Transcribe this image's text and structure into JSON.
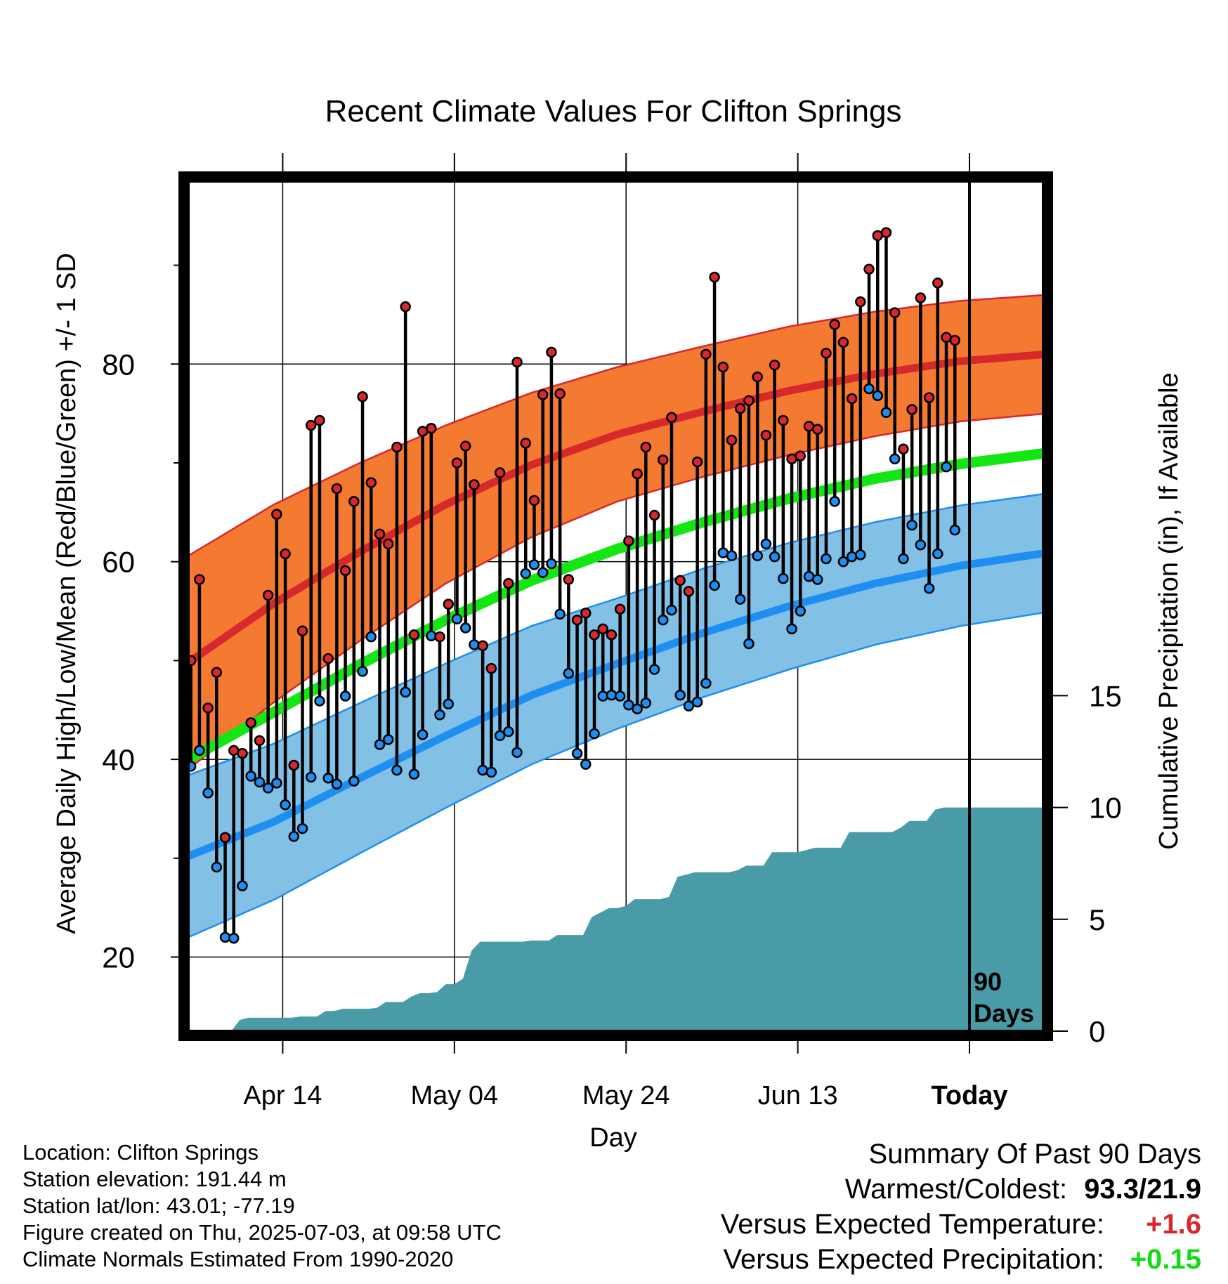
{
  "chart_data": {
    "type": "line",
    "title": "Recent Climate Values For Clifton Springs",
    "xlabel": "Day",
    "ylabel": "Average Daily High/Low/Mean (Red/Blue/Green) +/- 1 SD",
    "y2label": "Cumulative Precipitation (in), If Available",
    "ylim": [
      12.5,
      98.5
    ],
    "y2lim": [
      0,
      38
    ],
    "yticks": [
      20,
      40,
      60,
      80
    ],
    "y2ticks": [
      0,
      5,
      10,
      15
    ],
    "xticks": [
      {
        "day": 11,
        "label": "Apr 14"
      },
      {
        "day": 31,
        "label": "May 04"
      },
      {
        "day": 51,
        "label": "May 24"
      },
      {
        "day": 71,
        "label": "Jun 13"
      },
      {
        "day": 91,
        "label": "Today"
      }
    ],
    "today_marker": {
      "day": 91,
      "label_top": "90",
      "label_bottom": "Days"
    },
    "normals": {
      "days": [
        0,
        10,
        20,
        30,
        40,
        50,
        60,
        70,
        80,
        90,
        100
      ],
      "high_mean": [
        49.8,
        55.8,
        61.0,
        65.8,
        69.8,
        72.9,
        75.2,
        77.3,
        79.0,
        80.3,
        81.0
      ],
      "high_sd": [
        10.8,
        10.0,
        9.0,
        8.0,
        7.3,
        6.8,
        6.6,
        6.5,
        6.3,
        6.1,
        6.0
      ],
      "low_mean": [
        30.2,
        33.7,
        38.1,
        42.4,
        46.5,
        49.7,
        52.8,
        55.5,
        57.8,
        59.6,
        60.9
      ],
      "low_sd": [
        8.2,
        7.9,
        7.6,
        7.3,
        7.0,
        6.6,
        6.5,
        6.4,
        6.2,
        6.1,
        6.0
      ],
      "mean": [
        40.0,
        44.8,
        49.6,
        54.1,
        58.1,
        61.3,
        64.0,
        66.4,
        68.4,
        69.9,
        71.0
      ]
    },
    "series": [
      {
        "name": "High",
        "values": [
          50.0,
          58.2,
          45.2,
          48.8,
          32.1,
          40.9,
          40.6,
          43.7,
          41.9,
          56.6,
          64.8,
          60.8,
          39.4,
          53.0,
          73.8,
          74.3,
          50.2,
          67.4,
          59.1,
          66.1,
          76.7,
          68.0,
          62.8,
          61.8,
          71.6,
          85.8,
          52.6,
          73.2,
          73.5,
          52.4,
          55.7,
          70.0,
          71.7,
          67.8,
          51.5,
          49.2,
          69.0,
          57.8,
          80.2,
          72.0,
          66.2,
          76.9,
          81.2,
          77.0,
          58.2,
          54.1,
          54.8,
          52.6,
          53.2,
          52.6,
          55.2,
          62.1,
          68.9,
          71.6,
          64.7,
          70.3,
          74.6,
          58.1,
          57.0,
          70.1,
          81.0,
          88.8,
          79.7,
          72.3,
          75.5,
          76.3,
          78.7,
          72.8,
          79.9,
          74.3,
          70.4,
          70.7,
          73.7,
          73.4,
          81.1,
          84.0,
          82.2,
          76.5,
          86.3,
          89.6,
          93.0,
          93.3,
          85.2,
          71.4,
          75.4,
          86.7,
          76.6,
          88.2,
          82.7,
          82.4
        ]
      },
      {
        "name": "Low",
        "values": [
          39.3,
          40.9,
          36.6,
          29.1,
          22.0,
          21.9,
          27.2,
          38.3,
          37.7,
          37.1,
          37.6,
          35.4,
          32.2,
          33.0,
          38.2,
          45.9,
          38.1,
          37.5,
          46.4,
          37.8,
          48.9,
          52.4,
          41.5,
          42.0,
          38.9,
          46.8,
          38.5,
          42.5,
          52.5,
          44.5,
          45.6,
          54.2,
          53.3,
          51.6,
          38.9,
          38.7,
          42.4,
          42.8,
          40.7,
          58.8,
          59.7,
          58.9,
          59.8,
          54.7,
          48.7,
          40.6,
          39.5,
          42.6,
          46.4,
          46.5,
          46.4,
          45.5,
          45.1,
          45.7,
          49.1,
          54.1,
          55.1,
          46.5,
          45.4,
          45.8,
          47.7,
          57.6,
          60.9,
          60.6,
          56.2,
          51.7,
          60.6,
          61.8,
          60.5,
          58.3,
          53.2,
          55.0,
          58.5,
          58.2,
          60.3,
          66.1,
          60.0,
          60.5,
          60.7,
          77.5,
          76.8,
          75.1,
          70.4,
          60.3,
          63.7,
          61.7,
          57.3,
          60.8,
          69.6,
          63.2
        ]
      },
      {
        "name": "Cumulative Precipitation",
        "values": [
          0.0,
          0.0,
          0.0,
          0.0,
          0.0,
          0.0,
          0.5,
          0.6,
          0.6,
          0.6,
          0.6,
          0.6,
          0.6,
          0.65,
          0.65,
          0.65,
          0.9,
          0.9,
          1.0,
          1.0,
          1.0,
          1.0,
          1.05,
          1.3,
          1.3,
          1.3,
          1.55,
          1.7,
          1.7,
          1.75,
          2.1,
          2.1,
          2.35,
          3.6,
          4.0,
          4.0,
          4.0,
          4.0,
          4.0,
          4.0,
          4.05,
          4.05,
          4.05,
          4.3,
          4.3,
          4.3,
          4.3,
          5.1,
          5.3,
          5.5,
          5.5,
          5.6,
          5.9,
          5.9,
          5.9,
          5.9,
          6.0,
          6.9,
          7.0,
          7.1,
          7.1,
          7.1,
          7.1,
          7.1,
          7.2,
          7.4,
          7.4,
          7.4,
          8.0,
          8.0,
          8.0,
          8.0,
          8.1,
          8.2,
          8.2,
          8.2,
          8.2,
          8.9,
          8.9,
          8.9,
          8.9,
          8.9,
          8.9,
          9.1,
          9.4,
          9.4,
          9.4,
          9.9,
          10.0,
          10.0,
          10.0,
          10.0,
          10.0,
          10.0,
          10.0,
          10.0,
          10.0,
          10.0,
          10.0,
          10.0,
          10.0
        ]
      }
    ],
    "grid": true,
    "legend": "none"
  },
  "colors": {
    "high_band": "#f47a32",
    "high_line": "#d7282c",
    "high_edge": "#d7282c",
    "low_band": "#82c0e6",
    "low_line": "#1e8ff0",
    "low_edge": "#1e8ff0",
    "mean_line": "#14e614",
    "precip_fill": "#4a9ba8",
    "high_dot": "#d7282c",
    "low_dot": "#1e8ff0",
    "warm": "#d7282c",
    "precip_positive": "#14dc14"
  },
  "footer": {
    "location": "Location: Clifton Springs",
    "elevation": "Station elevation: 191.44 m",
    "latlon": "Station lat/lon: 43.01; -77.19",
    "created": "Figure created on Thu, 2025-07-03, at 09:58 UTC",
    "normals": "Climate Normals Estimated From 1990-2020"
  },
  "summary": {
    "title": "Summary Of Past 90 Days",
    "warmest_label": "Warmest/Coldest:",
    "warmest_value": "93.3/21.9",
    "temp_label": "Versus Expected Temperature:",
    "temp_value": "+1.6",
    "precip_label": "Versus Expected Precipitation:",
    "precip_value": "+0.15"
  }
}
